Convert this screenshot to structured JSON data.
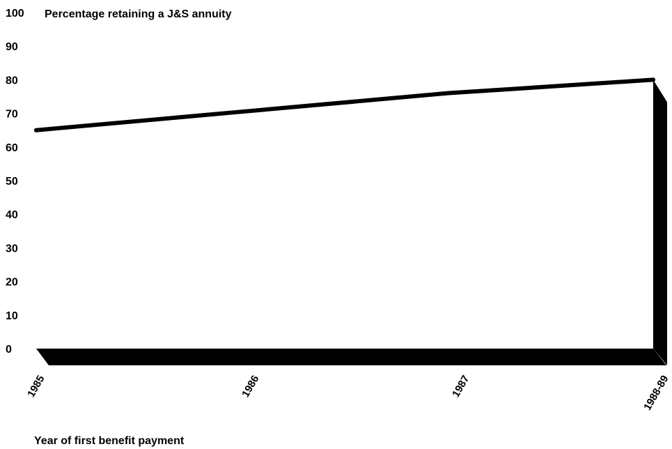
{
  "chart_data": {
    "type": "line",
    "ylabel": "Percentage retaining a J&S annuity",
    "xlabel": "Year of first benefit payment",
    "categories": [
      "1985",
      "1986",
      "1987",
      "1988-89"
    ],
    "y_ticks": [
      "100",
      "90",
      "80",
      "70",
      "60",
      "50",
      "40",
      "30",
      "20",
      "10",
      "0"
    ],
    "ylim": [
      0,
      100
    ],
    "grid": false,
    "legend": "none",
    "series": [
      {
        "values": [
          65,
          70.5,
          76,
          80
        ]
      }
    ],
    "colors": {
      "line": "#000000",
      "shadow": "#000000",
      "background": "#ffffff"
    }
  }
}
